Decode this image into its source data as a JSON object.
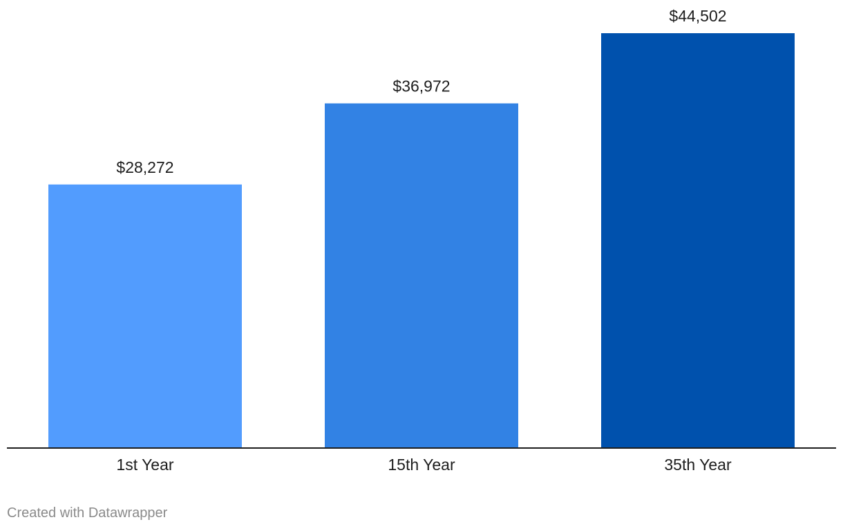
{
  "chart_data": {
    "type": "bar",
    "title": "",
    "xlabel": "",
    "ylabel": "",
    "categories": [
      "1st Year",
      "15th Year",
      "35th Year"
    ],
    "values": [
      28272,
      36972,
      44502
    ],
    "value_labels": [
      "$28,272",
      "$36,972",
      "$44,502"
    ],
    "colors": [
      "#529cfe",
      "#3282e4",
      "#0051ad"
    ],
    "ylim": [
      0,
      44502
    ],
    "grid": false,
    "legend": "none"
  },
  "credit": "Created with Datawrapper"
}
